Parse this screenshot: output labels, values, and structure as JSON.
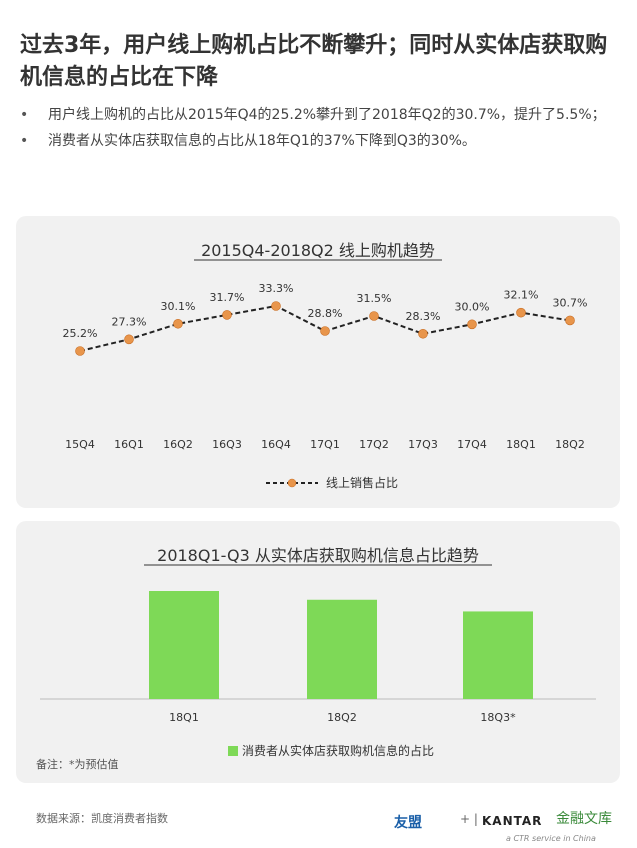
{
  "title": "过去3年，用户线上购机占比不断攀升；同时从实体店获取购机信息的占比在下降",
  "bullets": [
    "用户线上购机的占比从2015年Q4的25.2%攀升到了2018年Q2的30.7%，提升了5.5%；",
    "消费者从实体店获取信息的占比从18年Q1的37%下降到Q3的30%。"
  ],
  "chart_data": [
    {
      "type": "line",
      "title": "2015Q4-2018Q2 线上购机趋势",
      "categories": [
        "15Q4",
        "16Q1",
        "16Q2",
        "16Q3",
        "16Q4",
        "17Q1",
        "17Q2",
        "17Q3",
        "17Q4",
        "18Q1",
        "18Q2"
      ],
      "series": [
        {
          "name": "线上销售占比",
          "values": [
            25.2,
            27.3,
            30.1,
            31.7,
            33.3,
            28.8,
            31.5,
            28.3,
            30.0,
            32.1,
            30.7
          ],
          "labels": [
            "25.2%",
            "27.3%",
            "30.1%",
            "31.7%",
            "33.3%",
            "28.8%",
            "31.5%",
            "28.3%",
            "30.0%",
            "32.1%",
            "30.7%"
          ],
          "color": "#E8954B"
        }
      ],
      "ylim": [
        20,
        36
      ],
      "grid": false,
      "legend": "bottom"
    },
    {
      "type": "bar",
      "title": "2018Q1-Q3 从实体店获取购机信息占比趋势",
      "categories": [
        "18Q1",
        "18Q2",
        "18Q3*"
      ],
      "series": [
        {
          "name": "消费者从实体店获取购机信息的占比",
          "values": [
            37,
            34,
            30
          ],
          "color": "#7ED957"
        }
      ],
      "ylim": [
        0,
        45
      ],
      "grid": false,
      "legend": "bottom"
    }
  ],
  "footer": {
    "note": "备注：*为预估值",
    "source": "数据来源：凯度消费者指数",
    "logo_youmeng": "友盟",
    "logo_plus": "+ |",
    "logo_kantar": "KANTAR",
    "logo_ctr": "a CTR service in China",
    "watermark": "金融文库"
  }
}
